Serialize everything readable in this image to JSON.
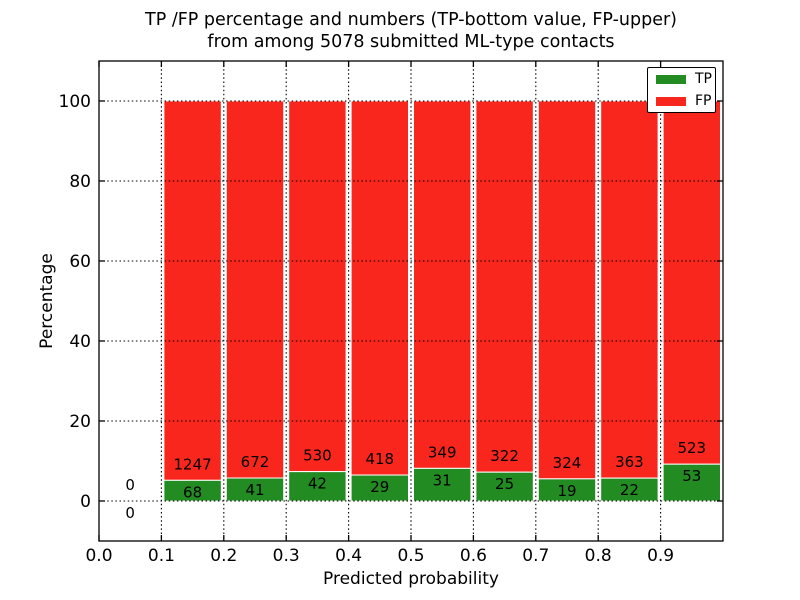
{
  "chart_data": {
    "type": "bar",
    "stacked": true,
    "title_line1": "TP /FP percentage and numbers (TP-bottom value, FP-upper)",
    "title_line2": "from among 5078 submitted ML-type contacts",
    "xlabel": "Predicted probability",
    "ylabel": "Percentage",
    "xlim": [
      0.0,
      1.0
    ],
    "ylim": [
      -10,
      110
    ],
    "grid": "dotted",
    "xticks": [
      {
        "value": 0.0,
        "label": "0.0"
      },
      {
        "value": 0.1,
        "label": "0.1"
      },
      {
        "value": 0.2,
        "label": "0.2"
      },
      {
        "value": 0.3,
        "label": "0.3"
      },
      {
        "value": 0.4,
        "label": "0.4"
      },
      {
        "value": 0.5,
        "label": "0.5"
      },
      {
        "value": 0.6,
        "label": "0.6"
      },
      {
        "value": 0.7,
        "label": "0.7"
      },
      {
        "value": 0.8,
        "label": "0.8"
      },
      {
        "value": 0.9,
        "label": "0.9"
      }
    ],
    "yticks": [
      {
        "value": 0,
        "label": "0"
      },
      {
        "value": 20,
        "label": "20"
      },
      {
        "value": 40,
        "label": "40"
      },
      {
        "value": 60,
        "label": "60"
      },
      {
        "value": 80,
        "label": "80"
      },
      {
        "value": 100,
        "label": "100"
      }
    ],
    "legend": {
      "position": "upper-right",
      "entries": [
        {
          "label": "TP",
          "color": "#228b22"
        },
        {
          "label": "FP",
          "color": "#f8261d"
        }
      ]
    },
    "bins": [
      {
        "range": [
          0.0,
          0.1
        ],
        "tp": 0,
        "fp": 0
      },
      {
        "range": [
          0.1,
          0.2
        ],
        "tp": 68,
        "fp": 1247
      },
      {
        "range": [
          0.2,
          0.3
        ],
        "tp": 41,
        "fp": 672
      },
      {
        "range": [
          0.3,
          0.4
        ],
        "tp": 42,
        "fp": 530
      },
      {
        "range": [
          0.4,
          0.5
        ],
        "tp": 29,
        "fp": 418
      },
      {
        "range": [
          0.5,
          0.6
        ],
        "tp": 31,
        "fp": 349
      },
      {
        "range": [
          0.6,
          0.7
        ],
        "tp": 25,
        "fp": 322
      },
      {
        "range": [
          0.7,
          0.8
        ],
        "tp": 19,
        "fp": 324
      },
      {
        "range": [
          0.8,
          0.9
        ],
        "tp": 22,
        "fp": 363
      },
      {
        "range": [
          0.9,
          1.0
        ],
        "tp": 53,
        "fp": 523
      }
    ]
  },
  "colors": {
    "tp": "#228b22",
    "fp": "#f8261d",
    "axis": "#000000",
    "background": "#ffffff"
  }
}
